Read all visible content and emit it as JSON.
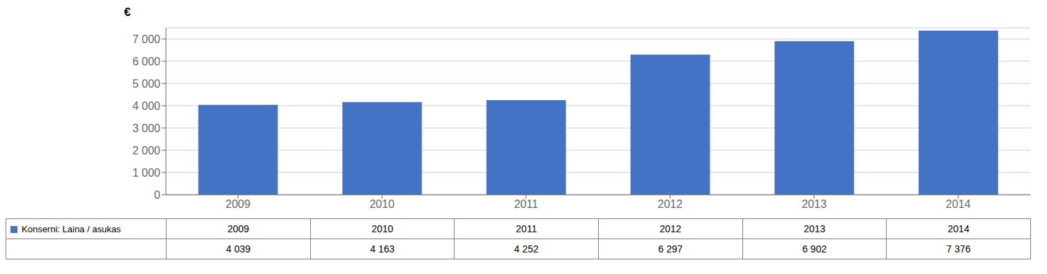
{
  "chart_data": {
    "type": "bar",
    "ylabel": "€",
    "categories": [
      "2009",
      "2010",
      "2011",
      "2012",
      "2013",
      "2014"
    ],
    "series": [
      {
        "name": "Konserni: Laina / asukas",
        "color": "#4472C4",
        "values": [
          4039,
          4163,
          4252,
          6297,
          6902,
          7376
        ],
        "value_labels": [
          "4 039",
          "4 163",
          "4 252",
          "6 297",
          "6 902",
          "7 376"
        ]
      }
    ],
    "ylim": [
      0,
      7500
    ],
    "yticks": [
      0,
      {
        "value": 1000,
        "label": "1 000"
      },
      {
        "value": 2000,
        "label": "2 000"
      },
      {
        "value": 3000,
        "label": "3 000"
      },
      {
        "value": 4000,
        "label": "4 000"
      },
      {
        "value": 5000,
        "label": "5 000"
      },
      {
        "value": 6000,
        "label": "6 000"
      },
      {
        "value": 7000,
        "label": "7 000"
      }
    ],
    "grid": true
  }
}
